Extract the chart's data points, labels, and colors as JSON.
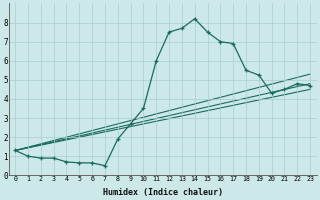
{
  "xlabel": "Humidex (Indice chaleur)",
  "ylabel": "",
  "xlim": [
    -0.5,
    23.5
  ],
  "ylim": [
    0,
    9
  ],
  "xticks": [
    0,
    1,
    2,
    3,
    4,
    5,
    6,
    7,
    8,
    9,
    10,
    11,
    12,
    13,
    14,
    15,
    16,
    17,
    18,
    19,
    20,
    21,
    22,
    23
  ],
  "yticks": [
    0,
    1,
    2,
    3,
    4,
    5,
    6,
    7,
    8
  ],
  "background_color": "#cce8e8",
  "grid_color": "#aacece",
  "line_color": "#1a6b5a",
  "curve1_x": [
    0,
    1,
    2,
    3,
    4,
    5,
    6,
    7,
    8,
    9,
    10,
    11,
    12,
    13,
    14,
    15,
    16,
    17,
    18,
    19,
    20,
    21,
    22,
    23
  ],
  "curve1_y": [
    1.3,
    1.0,
    0.9,
    0.9,
    0.7,
    0.65,
    0.65,
    0.5,
    1.9,
    2.7,
    3.5,
    6.0,
    7.5,
    7.7,
    8.2,
    7.5,
    7.0,
    6.9,
    5.5,
    5.25,
    4.3,
    4.5,
    4.8,
    4.7
  ],
  "line1_x": [
    0,
    23
  ],
  "line1_y": [
    1.3,
    5.3
  ],
  "line2_x": [
    0,
    23
  ],
  "line2_y": [
    1.3,
    4.8
  ],
  "line3_x": [
    0,
    23
  ],
  "line3_y": [
    1.3,
    4.5
  ]
}
